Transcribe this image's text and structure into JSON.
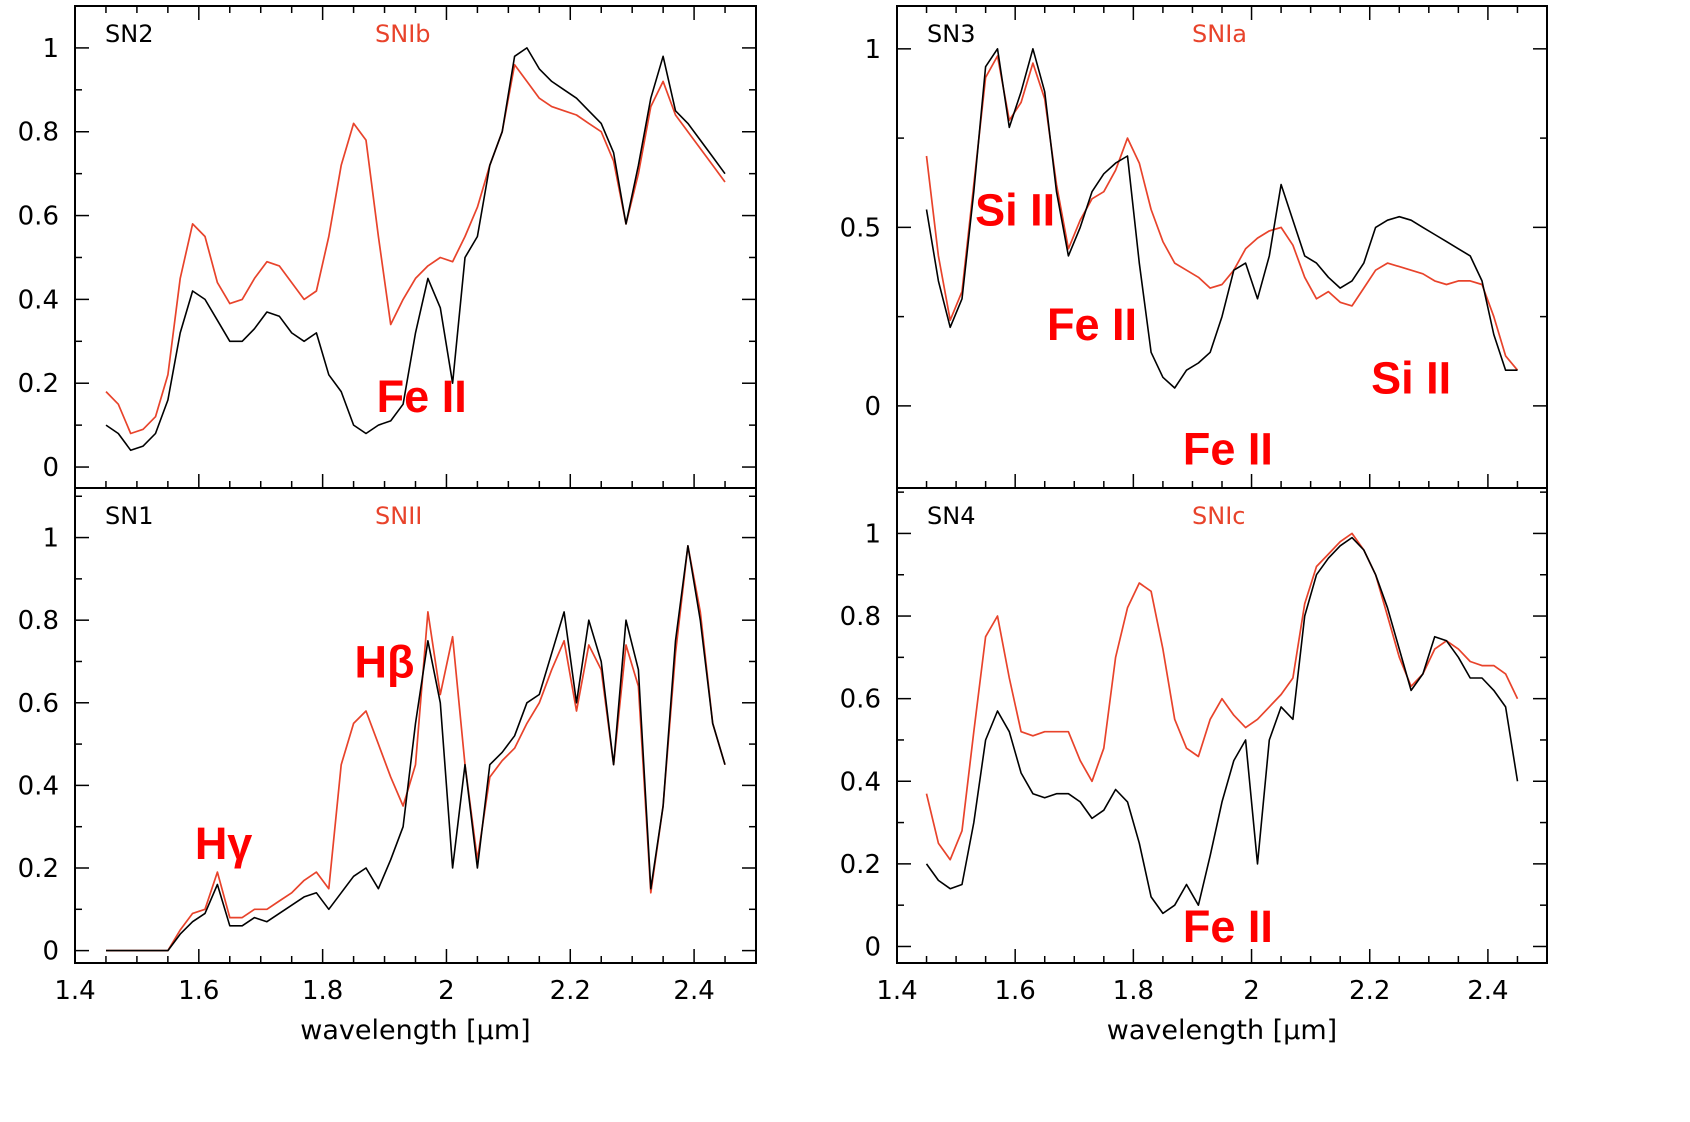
{
  "figure": {
    "xlabel": "wavelength [μm]",
    "colors": {
      "observed": "#000000",
      "template": "#e8432b",
      "annotation": "#ff0000"
    }
  },
  "chart_data": [
    {
      "type": "line",
      "panel": "SN2",
      "template_type": "SNIb",
      "xlim": [
        1.4,
        2.5
      ],
      "ylim": [
        -0.05,
        1.1
      ],
      "xticks": [
        "1.4",
        "1.6",
        "1.8",
        "2",
        "2.2",
        "2.4"
      ],
      "yticks": [
        "0",
        "0.2",
        "0.4",
        "0.6",
        "0.8",
        "1"
      ],
      "xlabel": "",
      "annotations": [
        {
          "text": "Fe II",
          "x": 1.96,
          "y": 0.17
        }
      ],
      "series": [
        {
          "name": "SN2",
          "color": "#000000",
          "x": [
            1.45,
            1.47,
            1.49,
            1.51,
            1.53,
            1.55,
            1.57,
            1.59,
            1.61,
            1.63,
            1.65,
            1.67,
            1.69,
            1.71,
            1.73,
            1.75,
            1.77,
            1.79,
            1.81,
            1.83,
            1.85,
            1.87,
            1.89,
            1.91,
            1.93,
            1.95,
            1.97,
            1.99,
            2.01,
            2.03,
            2.05,
            2.07,
            2.09,
            2.11,
            2.13,
            2.15,
            2.17,
            2.19,
            2.21,
            2.23,
            2.25,
            2.27,
            2.29,
            2.31,
            2.33,
            2.35,
            2.37,
            2.39,
            2.41,
            2.43,
            2.45
          ],
          "values": [
            0.1,
            0.08,
            0.04,
            0.05,
            0.08,
            0.16,
            0.32,
            0.42,
            0.4,
            0.35,
            0.3,
            0.3,
            0.33,
            0.37,
            0.36,
            0.32,
            0.3,
            0.32,
            0.22,
            0.18,
            0.1,
            0.08,
            0.1,
            0.11,
            0.15,
            0.32,
            0.45,
            0.38,
            0.2,
            0.5,
            0.55,
            0.72,
            0.8,
            0.98,
            1.0,
            0.95,
            0.92,
            0.9,
            0.88,
            0.85,
            0.82,
            0.75,
            0.58,
            0.72,
            0.88,
            0.98,
            0.85,
            0.82,
            0.78,
            0.74,
            0.7
          ]
        },
        {
          "name": "SNIb",
          "color": "#e8432b",
          "x": [
            1.45,
            1.47,
            1.49,
            1.51,
            1.53,
            1.55,
            1.57,
            1.59,
            1.61,
            1.63,
            1.65,
            1.67,
            1.69,
            1.71,
            1.73,
            1.75,
            1.77,
            1.79,
            1.81,
            1.83,
            1.85,
            1.87,
            1.89,
            1.91,
            1.93,
            1.95,
            1.97,
            1.99,
            2.01,
            2.03,
            2.05,
            2.07,
            2.09,
            2.11,
            2.13,
            2.15,
            2.17,
            2.19,
            2.21,
            2.23,
            2.25,
            2.27,
            2.29,
            2.31,
            2.33,
            2.35,
            2.37,
            2.39,
            2.41,
            2.43,
            2.45
          ],
          "values": [
            0.18,
            0.15,
            0.08,
            0.09,
            0.12,
            0.22,
            0.45,
            0.58,
            0.55,
            0.44,
            0.39,
            0.4,
            0.45,
            0.49,
            0.48,
            0.44,
            0.4,
            0.42,
            0.55,
            0.72,
            0.82,
            0.78,
            0.55,
            0.34,
            0.4,
            0.45,
            0.48,
            0.5,
            0.49,
            0.55,
            0.62,
            0.72,
            0.8,
            0.96,
            0.92,
            0.88,
            0.86,
            0.85,
            0.84,
            0.82,
            0.8,
            0.73,
            0.58,
            0.7,
            0.86,
            0.92,
            0.84,
            0.8,
            0.76,
            0.72,
            0.68
          ]
        }
      ]
    },
    {
      "type": "line",
      "panel": "SN3",
      "template_type": "SNIa",
      "xlim": [
        1.4,
        2.5
      ],
      "ylim": [
        -0.23,
        1.12
      ],
      "xticks": [
        "1.4",
        "1.6",
        "1.8",
        "2",
        "2.2",
        "2.4"
      ],
      "yticks": [
        "0",
        "0.5",
        "1"
      ],
      "xlabel": "",
      "annotations": [
        {
          "text": "Si II",
          "x": 1.6,
          "y": 0.55
        },
        {
          "text": "Fe II",
          "x": 1.73,
          "y": 0.23
        },
        {
          "text": "Fe II",
          "x": 1.96,
          "y": -0.12
        },
        {
          "text": "Si II",
          "x": 2.27,
          "y": 0.08
        }
      ],
      "series": [
        {
          "name": "SN3",
          "color": "#000000",
          "x": [
            1.45,
            1.47,
            1.49,
            1.51,
            1.53,
            1.55,
            1.57,
            1.59,
            1.61,
            1.63,
            1.65,
            1.67,
            1.69,
            1.71,
            1.73,
            1.75,
            1.77,
            1.79,
            1.81,
            1.83,
            1.85,
            1.87,
            1.89,
            1.91,
            1.93,
            1.95,
            1.97,
            1.99,
            2.01,
            2.03,
            2.05,
            2.07,
            2.09,
            2.11,
            2.13,
            2.15,
            2.17,
            2.19,
            2.21,
            2.23,
            2.25,
            2.27,
            2.29,
            2.31,
            2.33,
            2.35,
            2.37,
            2.39,
            2.41,
            2.43,
            2.45
          ],
          "values": [
            0.55,
            0.35,
            0.22,
            0.3,
            0.6,
            0.95,
            1.0,
            0.78,
            0.88,
            1.0,
            0.88,
            0.6,
            0.42,
            0.5,
            0.6,
            0.65,
            0.68,
            0.7,
            0.4,
            0.15,
            0.08,
            0.05,
            0.1,
            0.12,
            0.15,
            0.25,
            0.38,
            0.4,
            0.3,
            0.42,
            0.62,
            0.52,
            0.42,
            0.4,
            0.36,
            0.33,
            0.35,
            0.4,
            0.5,
            0.52,
            0.53,
            0.52,
            0.5,
            0.48,
            0.46,
            0.44,
            0.42,
            0.35,
            0.2,
            0.1,
            0.1
          ]
        },
        {
          "name": "SNIa",
          "color": "#e8432b",
          "x": [
            1.45,
            1.47,
            1.49,
            1.51,
            1.53,
            1.55,
            1.57,
            1.59,
            1.61,
            1.63,
            1.65,
            1.67,
            1.69,
            1.71,
            1.73,
            1.75,
            1.77,
            1.79,
            1.81,
            1.83,
            1.85,
            1.87,
            1.89,
            1.91,
            1.93,
            1.95,
            1.97,
            1.99,
            2.01,
            2.03,
            2.05,
            2.07,
            2.09,
            2.11,
            2.13,
            2.15,
            2.17,
            2.19,
            2.21,
            2.23,
            2.25,
            2.27,
            2.29,
            2.31,
            2.33,
            2.35,
            2.37,
            2.39,
            2.41,
            2.43,
            2.45
          ],
          "values": [
            0.7,
            0.42,
            0.24,
            0.32,
            0.62,
            0.92,
            0.98,
            0.8,
            0.85,
            0.96,
            0.86,
            0.62,
            0.44,
            0.52,
            0.58,
            0.6,
            0.66,
            0.75,
            0.68,
            0.55,
            0.46,
            0.4,
            0.38,
            0.36,
            0.33,
            0.34,
            0.38,
            0.44,
            0.47,
            0.49,
            0.5,
            0.45,
            0.36,
            0.3,
            0.32,
            0.29,
            0.28,
            0.33,
            0.38,
            0.4,
            0.39,
            0.38,
            0.37,
            0.35,
            0.34,
            0.35,
            0.35,
            0.34,
            0.25,
            0.14,
            0.1
          ]
        }
      ]
    },
    {
      "type": "line",
      "panel": "SN1",
      "template_type": "SNII",
      "xlim": [
        1.4,
        2.5
      ],
      "ylim": [
        -0.03,
        1.12
      ],
      "xticks": [
        "1.4",
        "1.6",
        "1.8",
        "2",
        "2.2",
        "2.4"
      ],
      "yticks": [
        "0",
        "0.2",
        "0.4",
        "0.6",
        "0.8",
        "1"
      ],
      "xlabel": "wavelength [μm]",
      "annotations": [
        {
          "text": "Hγ",
          "x": 1.64,
          "y": 0.26
        },
        {
          "text": "Hβ",
          "x": 1.9,
          "y": 0.7
        }
      ],
      "series": [
        {
          "name": "SN1",
          "color": "#000000",
          "x": [
            1.45,
            1.47,
            1.49,
            1.51,
            1.53,
            1.55,
            1.57,
            1.59,
            1.61,
            1.63,
            1.65,
            1.67,
            1.69,
            1.71,
            1.73,
            1.75,
            1.77,
            1.79,
            1.81,
            1.83,
            1.85,
            1.87,
            1.89,
            1.91,
            1.93,
            1.95,
            1.97,
            1.99,
            2.01,
            2.03,
            2.05,
            2.07,
            2.09,
            2.11,
            2.13,
            2.15,
            2.17,
            2.19,
            2.21,
            2.23,
            2.25,
            2.27,
            2.29,
            2.31,
            2.33,
            2.35,
            2.37,
            2.39,
            2.41,
            2.43,
            2.45
          ],
          "values": [
            0.0,
            0.0,
            0.0,
            0.0,
            0.0,
            0.0,
            0.04,
            0.07,
            0.09,
            0.16,
            0.06,
            0.06,
            0.08,
            0.07,
            0.09,
            0.11,
            0.13,
            0.14,
            0.1,
            0.14,
            0.18,
            0.2,
            0.15,
            0.22,
            0.3,
            0.55,
            0.75,
            0.6,
            0.2,
            0.45,
            0.2,
            0.45,
            0.48,
            0.52,
            0.6,
            0.62,
            0.72,
            0.82,
            0.6,
            0.8,
            0.7,
            0.45,
            0.8,
            0.68,
            0.15,
            0.35,
            0.75,
            0.98,
            0.8,
            0.55,
            0.45
          ]
        },
        {
          "name": "SNII",
          "color": "#e8432b",
          "x": [
            1.45,
            1.47,
            1.49,
            1.51,
            1.53,
            1.55,
            1.57,
            1.59,
            1.61,
            1.63,
            1.65,
            1.67,
            1.69,
            1.71,
            1.73,
            1.75,
            1.77,
            1.79,
            1.81,
            1.83,
            1.85,
            1.87,
            1.89,
            1.91,
            1.93,
            1.95,
            1.97,
            1.99,
            2.01,
            2.03,
            2.05,
            2.07,
            2.09,
            2.11,
            2.13,
            2.15,
            2.17,
            2.19,
            2.21,
            2.23,
            2.25,
            2.27,
            2.29,
            2.31,
            2.33,
            2.35,
            2.37,
            2.39,
            2.41,
            2.43,
            2.45
          ],
          "values": [
            0.0,
            0.0,
            0.0,
            0.0,
            0.0,
            0.0,
            0.05,
            0.09,
            0.1,
            0.19,
            0.08,
            0.08,
            0.1,
            0.1,
            0.12,
            0.14,
            0.17,
            0.19,
            0.15,
            0.45,
            0.55,
            0.58,
            0.5,
            0.42,
            0.35,
            0.45,
            0.82,
            0.62,
            0.76,
            0.45,
            0.22,
            0.42,
            0.46,
            0.49,
            0.55,
            0.6,
            0.68,
            0.75,
            0.58,
            0.74,
            0.68,
            0.45,
            0.74,
            0.64,
            0.14,
            0.35,
            0.72,
            0.98,
            0.82,
            0.55,
            0.45
          ]
        }
      ]
    },
    {
      "type": "line",
      "panel": "SN4",
      "template_type": "SNIc",
      "xlim": [
        1.4,
        2.5
      ],
      "ylim": [
        -0.04,
        1.11
      ],
      "xticks": [
        "1.4",
        "1.6",
        "1.8",
        "2",
        "2.2",
        "2.4"
      ],
      "yticks": [
        "0",
        "0.2",
        "0.4",
        "0.6",
        "0.8",
        "1"
      ],
      "xlabel": "wavelength [μm]",
      "annotations": [
        {
          "text": "Fe II",
          "x": 1.96,
          "y": 0.05
        }
      ],
      "series": [
        {
          "name": "SN4",
          "color": "#000000",
          "x": [
            1.45,
            1.47,
            1.49,
            1.51,
            1.53,
            1.55,
            1.57,
            1.59,
            1.61,
            1.63,
            1.65,
            1.67,
            1.69,
            1.71,
            1.73,
            1.75,
            1.77,
            1.79,
            1.81,
            1.83,
            1.85,
            1.87,
            1.89,
            1.91,
            1.93,
            1.95,
            1.97,
            1.99,
            2.01,
            2.03,
            2.05,
            2.07,
            2.09,
            2.11,
            2.13,
            2.15,
            2.17,
            2.19,
            2.21,
            2.23,
            2.25,
            2.27,
            2.29,
            2.31,
            2.33,
            2.35,
            2.37,
            2.39,
            2.41,
            2.43,
            2.45
          ],
          "values": [
            0.2,
            0.16,
            0.14,
            0.15,
            0.3,
            0.5,
            0.57,
            0.52,
            0.42,
            0.37,
            0.36,
            0.37,
            0.37,
            0.35,
            0.31,
            0.33,
            0.38,
            0.35,
            0.25,
            0.12,
            0.08,
            0.1,
            0.15,
            0.1,
            0.22,
            0.35,
            0.45,
            0.5,
            0.2,
            0.5,
            0.58,
            0.55,
            0.8,
            0.9,
            0.94,
            0.97,
            0.99,
            0.96,
            0.9,
            0.82,
            0.72,
            0.62,
            0.66,
            0.75,
            0.74,
            0.7,
            0.65,
            0.65,
            0.62,
            0.58,
            0.4
          ]
        },
        {
          "name": "SNIc",
          "color": "#e8432b",
          "x": [
            1.45,
            1.47,
            1.49,
            1.51,
            1.53,
            1.55,
            1.57,
            1.59,
            1.61,
            1.63,
            1.65,
            1.67,
            1.69,
            1.71,
            1.73,
            1.75,
            1.77,
            1.79,
            1.81,
            1.83,
            1.85,
            1.87,
            1.89,
            1.91,
            1.93,
            1.95,
            1.97,
            1.99,
            2.01,
            2.03,
            2.05,
            2.07,
            2.09,
            2.11,
            2.13,
            2.15,
            2.17,
            2.19,
            2.21,
            2.23,
            2.25,
            2.27,
            2.29,
            2.31,
            2.33,
            2.35,
            2.37,
            2.39,
            2.41,
            2.43,
            2.45
          ],
          "values": [
            0.37,
            0.25,
            0.21,
            0.28,
            0.52,
            0.75,
            0.8,
            0.65,
            0.52,
            0.51,
            0.52,
            0.52,
            0.52,
            0.45,
            0.4,
            0.48,
            0.7,
            0.82,
            0.88,
            0.86,
            0.72,
            0.55,
            0.48,
            0.46,
            0.55,
            0.6,
            0.56,
            0.53,
            0.55,
            0.58,
            0.61,
            0.65,
            0.83,
            0.92,
            0.95,
            0.98,
            1.0,
            0.96,
            0.9,
            0.8,
            0.7,
            0.63,
            0.66,
            0.72,
            0.74,
            0.72,
            0.69,
            0.68,
            0.68,
            0.66,
            0.6
          ]
        }
      ]
    }
  ]
}
